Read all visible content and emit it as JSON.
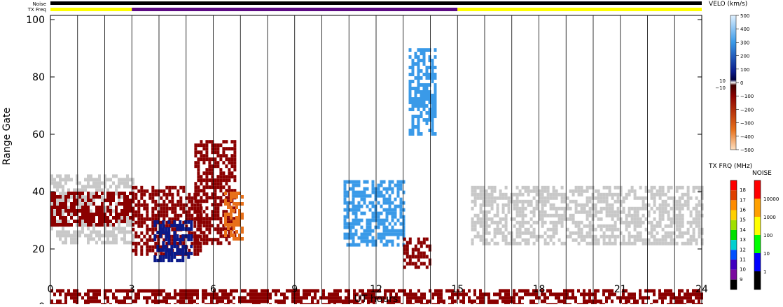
{
  "top_strips": {
    "noise_label": "Noise",
    "txfreq_label": "TX Freq",
    "txfreq_segments": [
      {
        "from": 0,
        "to": 3,
        "color": "#ffff00"
      },
      {
        "from": 3,
        "to": 15,
        "color": "#5b0a82"
      },
      {
        "from": 15,
        "to": 24,
        "color": "#ffff00"
      }
    ],
    "noise_color": "#000000"
  },
  "chart_data": {
    "type": "heatmap",
    "xlabel": "UT hours",
    "ylabel": "Range Gate",
    "xlim": [
      0,
      24
    ],
    "ylim": [
      0,
      100
    ],
    "x_ticks": [
      "0",
      "3",
      "6",
      "9",
      "12",
      "15",
      "18",
      "21",
      "24"
    ],
    "y_ticks": [
      "0",
      "20",
      "40",
      "60",
      "80",
      "100"
    ],
    "grid_hours": [
      1,
      2,
      3,
      4,
      5,
      6,
      7,
      8,
      9,
      10,
      11,
      12,
      13,
      14,
      15,
      16,
      17,
      18,
      19,
      20,
      21,
      22,
      23
    ],
    "colors": {
      "ground_scatter": "#c8c8c8",
      "negative_velocity": "#8b0000",
      "strong_negative": "#e8701a",
      "positive_velocity": "#0a1a8a",
      "strong_positive": "#3a9ae8"
    },
    "regions": [
      {
        "kind": "ground_scatter",
        "x": [
          0,
          3
        ],
        "y": [
          22,
          46
        ]
      },
      {
        "kind": "ground_scatter",
        "x": [
          15.5,
          24
        ],
        "y": [
          22,
          42
        ]
      },
      {
        "kind": "negative_velocity",
        "x": [
          0,
          3
        ],
        "y": [
          28,
          40
        ]
      },
      {
        "kind": "negative_velocity",
        "x": [
          3,
          5.5
        ],
        "y": [
          18,
          42
        ]
      },
      {
        "kind": "positive_velocity",
        "x": [
          3.8,
          5.2
        ],
        "y": [
          16,
          30
        ]
      },
      {
        "kind": "negative_velocity",
        "x": [
          5.3,
          6.8
        ],
        "y": [
          22,
          58
        ]
      },
      {
        "kind": "strong_negative",
        "x": [
          6.4,
          7.1
        ],
        "y": [
          24,
          40
        ]
      },
      {
        "kind": "strong_positive",
        "x": [
          10.8,
          13
        ],
        "y": [
          22,
          44
        ]
      },
      {
        "kind": "strong_positive",
        "x": [
          13.2,
          14.2
        ],
        "y": [
          60,
          90
        ]
      },
      {
        "kind": "negative_velocity",
        "x": [
          13,
          14
        ],
        "y": [
          14,
          24
        ]
      },
      {
        "kind": "negative_velocity",
        "x": [
          0,
          24
        ],
        "y": [
          0,
          6
        ]
      }
    ],
    "velocity_scale": {
      "title": "VELO (km/s)",
      "ticks": [
        "500",
        "400",
        "300",
        "200",
        "100",
        "0",
        "−100",
        "−200",
        "−300",
        "−400",
        "−500"
      ],
      "small_labels": [
        "10",
        "−10"
      ]
    },
    "txfreq_scale": {
      "title": "TX FRQ (MHz)",
      "ticks": [
        "18",
        "17",
        "16",
        "15",
        "14",
        "13",
        "12",
        "11",
        "10",
        "9"
      ],
      "colors": [
        "#ff0000",
        "#e04000",
        "#ff8c00",
        "#ffd000",
        "#a0e000",
        "#00e000",
        "#00d0d0",
        "#0050ff",
        "#4000c0",
        "#7a0aa0",
        "#000000"
      ]
    },
    "noise_scale": {
      "title": "NOISE",
      "ticks": [
        "10000",
        "1000",
        "100",
        "10",
        "1"
      ],
      "colors": [
        "#ff0000",
        "#ffa000",
        "#ffff00",
        "#00ff00",
        "#0000ff",
        "#000000"
      ]
    }
  }
}
